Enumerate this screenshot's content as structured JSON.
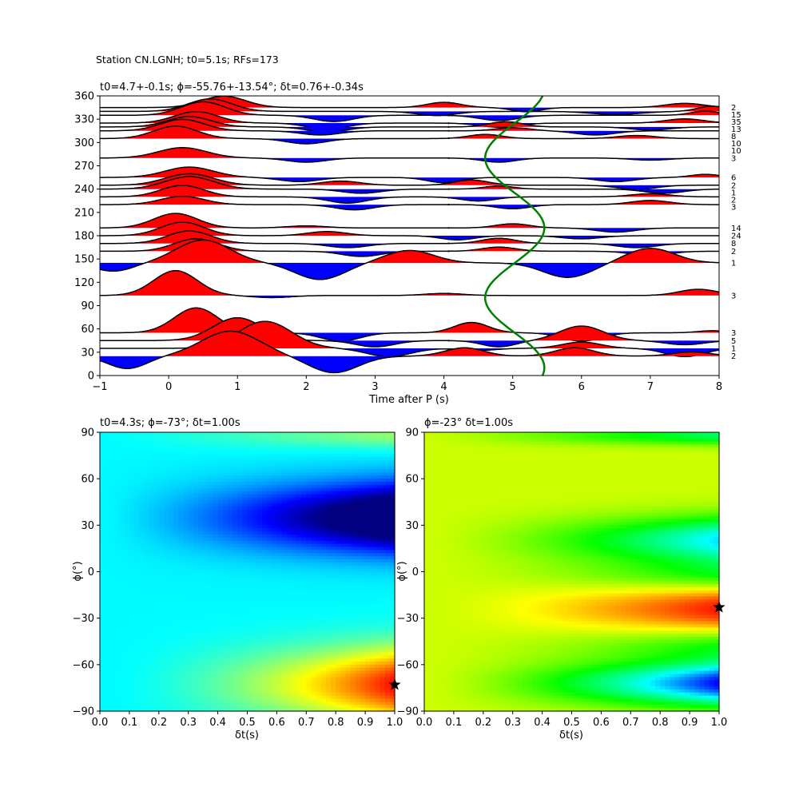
{
  "figure": {
    "suptitle": "Station CN.LGNH; t0=5.1s; RFs=173"
  },
  "chart_data": [
    {
      "type": "line",
      "panel": "receiver-function-traces",
      "title": "t0=4.7+-0.1s; ϕ=-55.76+-13.54°; δt=0.76+-0.34s",
      "xlabel": "Time after P (s)",
      "ylabel": "",
      "xlim": [
        -1,
        8
      ],
      "ylim": [
        0,
        360
      ],
      "xticks": [
        "−1",
        "0",
        "1",
        "2",
        "3",
        "4",
        "5",
        "6",
        "7",
        "8"
      ],
      "yticks": [
        "0",
        "30",
        "60",
        "90",
        "120",
        "150",
        "180",
        "210",
        "240",
        "270",
        "300",
        "330",
        "360"
      ],
      "fill_colors": {
        "positive": "#ff0000",
        "negative": "#0000ff"
      },
      "trace_scale": 26,
      "traces": [
        {
          "baz": 345,
          "count": "2",
          "peaks": [
            [
              0.8,
              0.55,
              0.45
            ],
            [
              4.0,
              0.25,
              0.35
            ],
            [
              5.2,
              -0.2,
              0.3
            ],
            [
              7.5,
              0.2,
              0.4
            ]
          ]
        },
        {
          "baz": 340,
          "count": "15",
          "peaks": [
            [
              0.6,
              0.6,
              0.45
            ],
            [
              3.9,
              -0.2,
              0.4
            ],
            [
              6.5,
              -0.15,
              0.5
            ],
            [
              7.9,
              0.25,
              0.3
            ]
          ]
        },
        {
          "baz": 335,
          "count": "35",
          "peaks": [
            [
              0.5,
              0.65,
              0.45
            ],
            [
              2.4,
              -0.3,
              0.4
            ],
            [
              4.8,
              -0.25,
              0.4
            ],
            [
              7.8,
              0.2,
              0.3
            ]
          ]
        },
        {
          "baz": 325,
          "count": "13",
          "peaks": [
            [
              0.4,
              0.55,
              0.45
            ],
            [
              2.3,
              -0.3,
              0.4
            ],
            [
              4.8,
              -0.2,
              0.4
            ],
            [
              7.5,
              0.2,
              0.4
            ]
          ]
        },
        {
          "baz": 320,
          "count": "8",
          "peaks": [
            [
              0.3,
              0.5,
              0.45
            ],
            [
              2.3,
              -0.25,
              0.4
            ],
            [
              4.9,
              0.25,
              0.35
            ],
            [
              7.0,
              -0.15,
              0.4
            ]
          ]
        },
        {
          "baz": 315,
          "count": "10",
          "peaks": [
            [
              0.2,
              0.55,
              0.45
            ],
            [
              2.2,
              -0.2,
              0.4
            ],
            [
              5.0,
              0.15,
              0.35
            ],
            [
              6.2,
              -0.2,
              0.4
            ]
          ]
        },
        {
          "baz": 305,
          "count": "10",
          "peaks": [
            [
              0.1,
              0.6,
              0.45
            ],
            [
              2.0,
              -0.25,
              0.4
            ],
            [
              4.6,
              0.2,
              0.35
            ],
            [
              6.8,
              0.15,
              0.4
            ]
          ]
        },
        {
          "baz": 280,
          "count": "3",
          "peaks": [
            [
              0.2,
              0.5,
              0.5
            ],
            [
              2.0,
              -0.2,
              0.4
            ],
            [
              4.8,
              -0.2,
              0.35
            ],
            [
              7.0,
              -0.1,
              0.4
            ]
          ]
        },
        {
          "baz": 255,
          "count": "6",
          "peaks": [
            [
              0.3,
              0.5,
              0.5
            ],
            [
              1.9,
              -0.2,
              0.4
            ],
            [
              4.0,
              -0.25,
              0.35
            ],
            [
              6.5,
              -0.2,
              0.4
            ],
            [
              7.8,
              0.15,
              0.3
            ]
          ]
        },
        {
          "baz": 245,
          "count": "2",
          "peaks": [
            [
              0.3,
              0.55,
              0.5
            ],
            [
              2.5,
              0.2,
              0.4
            ],
            [
              4.4,
              0.25,
              0.35
            ],
            [
              6.8,
              -0.2,
              0.4
            ]
          ]
        },
        {
          "baz": 240,
          "count": "1",
          "peaks": [
            [
              0.3,
              0.6,
              0.5
            ],
            [
              2.8,
              -0.2,
              0.4
            ],
            [
              4.8,
              0.15,
              0.3
            ],
            [
              7.2,
              -0.2,
              0.4
            ]
          ]
        },
        {
          "baz": 230,
          "count": "2",
          "peaks": [
            [
              0.2,
              0.55,
              0.45
            ],
            [
              2.6,
              -0.3,
              0.4
            ],
            [
              4.5,
              -0.2,
              0.35
            ],
            [
              7.0,
              0.15,
              0.4
            ]
          ]
        },
        {
          "baz": 220,
          "count": "3",
          "peaks": [
            [
              0.2,
              0.4,
              0.45
            ],
            [
              2.7,
              -0.25,
              0.4
            ],
            [
              5.0,
              -0.2,
              0.35
            ],
            [
              7.0,
              0.2,
              0.4
            ]
          ]
        },
        {
          "baz": 190,
          "count": "14",
          "peaks": [
            [
              0.1,
              0.7,
              0.45
            ],
            [
              2.0,
              0.1,
              0.4
            ],
            [
              5.0,
              0.2,
              0.35
            ],
            [
              6.5,
              -0.2,
              0.4
            ]
          ]
        },
        {
          "baz": 180,
          "count": "24",
          "peaks": [
            [
              0.2,
              0.65,
              0.45
            ],
            [
              2.3,
              0.2,
              0.4
            ],
            [
              4.2,
              -0.2,
              0.35
            ],
            [
              6.0,
              -0.15,
              0.4
            ]
          ]
        },
        {
          "baz": 170,
          "count": "8",
          "peaks": [
            [
              0.3,
              0.6,
              0.45
            ],
            [
              2.6,
              -0.2,
              0.4
            ],
            [
              4.8,
              0.25,
              0.35
            ],
            [
              6.8,
              -0.2,
              0.4
            ]
          ]
        },
        {
          "baz": 160,
          "count": "2",
          "peaks": [
            [
              0.4,
              0.6,
              0.45
            ],
            [
              2.8,
              -0.25,
              0.4
            ],
            [
              4.8,
              0.2,
              0.35
            ],
            [
              7.0,
              -0.2,
              0.4
            ]
          ]
        },
        {
          "baz": 145,
          "count": "1",
          "peaks": [
            [
              -0.8,
              -0.4,
              0.4
            ],
            [
              0.5,
              1.1,
              0.55
            ],
            [
              2.2,
              -0.8,
              0.5
            ],
            [
              3.5,
              0.6,
              0.5
            ],
            [
              5.8,
              -0.7,
              0.5
            ],
            [
              7.0,
              0.7,
              0.5
            ]
          ]
        },
        {
          "baz": 103,
          "count": "3",
          "peaks": [
            [
              0.1,
              1.2,
              0.45
            ],
            [
              1.5,
              -0.1,
              0.4
            ],
            [
              4.0,
              0.1,
              0.4
            ],
            [
              7.7,
              0.3,
              0.4
            ]
          ]
        },
        {
          "baz": 55,
          "count": "3",
          "peaks": [
            [
              0.4,
              1.2,
              0.45
            ],
            [
              2.5,
              -0.4,
              0.4
            ],
            [
              4.4,
              0.5,
              0.35
            ],
            [
              6.0,
              -0.4,
              0.4
            ],
            [
              7.9,
              0.1,
              0.3
            ]
          ]
        },
        {
          "baz": 45,
          "count": "5",
          "peaks": [
            [
              1.0,
              1.1,
              0.5
            ],
            [
              3.0,
              -0.3,
              0.4
            ],
            [
              4.8,
              -0.3,
              0.35
            ],
            [
              6.0,
              0.7,
              0.45
            ],
            [
              7.5,
              -0.2,
              0.4
            ]
          ]
        },
        {
          "baz": 35,
          "count": "1",
          "peaks": [
            [
              1.4,
              1.3,
              0.55
            ],
            [
              3.2,
              -0.4,
              0.45
            ],
            [
              4.5,
              -0.1,
              0.35
            ],
            [
              6.0,
              0.3,
              0.4
            ],
            [
              7.5,
              -0.4,
              0.4
            ]
          ]
        },
        {
          "baz": 25,
          "count": "2",
          "peaks": [
            [
              -0.6,
              -0.6,
              0.4
            ],
            [
              0.9,
              1.2,
              0.6
            ],
            [
              2.4,
              -0.8,
              0.5
            ],
            [
              4.3,
              0.4,
              0.4
            ],
            [
              5.9,
              0.4,
              0.4
            ],
            [
              7.6,
              0.2,
              0.4
            ]
          ]
        }
      ],
      "curve": {
        "color": "#008000",
        "t0": 5.03,
        "amplitude": 0.43,
        "cycles_per_360": 2,
        "phase_deg": 70
      }
    },
    {
      "type": "heatmap",
      "panel": "grid-search-left",
      "title": "t0=4.3s; ϕ=-73°; δt=1.00s",
      "xlabel": "δt(s)",
      "ylabel": "ϕ(°)",
      "xlim": [
        0,
        1
      ],
      "ylim": [
        -90,
        90
      ],
      "xticks": [
        "0.0",
        "0.1",
        "0.2",
        "0.3",
        "0.4",
        "0.5",
        "0.6",
        "0.7",
        "0.8",
        "0.9",
        "1.0"
      ],
      "yticks": [
        "−90",
        "−60",
        "−30",
        "0",
        "30",
        "60",
        "90"
      ],
      "colormap": "jet",
      "field": {
        "center_offset": 0.37,
        "components": [
          {
            "amp": 0.5,
            "phi_center": -73,
            "phi_width": 24,
            "dt_power": 1.8
          },
          {
            "amp": -0.55,
            "phi_center": 35,
            "phi_width": 22,
            "dt_power": 1.4
          },
          {
            "amp": 0.15,
            "phi_center": 88,
            "phi_width": 8,
            "dt_power": 1.2
          }
        ]
      },
      "best": {
        "dt": 1.0,
        "phi": -73
      },
      "marker": "star"
    },
    {
      "type": "heatmap",
      "panel": "grid-search-right",
      "title": "ϕ=-23° δt=1.00s",
      "xlabel": "δt(s)",
      "ylabel": "ϕ(°)",
      "xlim": [
        0,
        1
      ],
      "ylim": [
        -90,
        90
      ],
      "xticks": [
        "0.0",
        "0.1",
        "0.2",
        "0.3",
        "0.4",
        "0.5",
        "0.6",
        "0.7",
        "0.8",
        "0.9",
        "1.0"
      ],
      "yticks": [
        "−90",
        "−60",
        "−30",
        "0",
        "30",
        "60",
        "90"
      ],
      "colormap": "hsv",
      "field": {
        "base_hue": 0.2,
        "components": [
          {
            "hue": -0.19,
            "phi_center": -24,
            "phi_width": 14,
            "dt_power": 1.6
          },
          {
            "hue": 0.32,
            "phi_center": 20,
            "phi_width": 15,
            "dt_power": 1.6
          },
          {
            "hue": 0.47,
            "phi_center": -72,
            "phi_width": 14,
            "dt_power": 1.6
          },
          {
            "hue": 0.2,
            "phi_center": 88,
            "phi_width": 6,
            "dt_power": 1.2
          },
          {
            "hue": 0.12,
            "phi_center": -2,
            "phi_width": 10,
            "dt_power": 1.8
          },
          {
            "hue": 0.12,
            "phi_center": -48,
            "phi_width": 10,
            "dt_power": 1.8
          }
        ]
      },
      "best": {
        "dt": 1.0,
        "phi": -23
      },
      "marker": "star"
    }
  ]
}
